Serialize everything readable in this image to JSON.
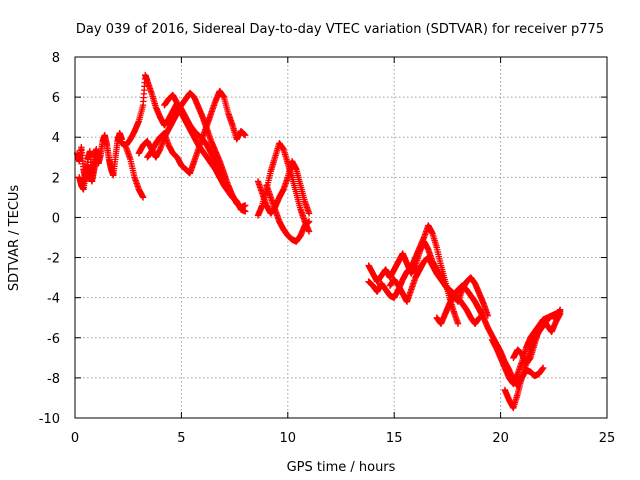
{
  "chart_data": {
    "type": "scatter",
    "title": "Day 039 of 2016, Sidereal Day-to-day VTEC variation (SDTVAR) for receiver p775",
    "xlabel": "GPS time / hours",
    "ylabel": "SDTVAR / TECUs",
    "xlim": [
      0,
      25
    ],
    "ylim": [
      -10,
      8
    ],
    "x_ticks": [
      "0",
      "5",
      "10",
      "15",
      "20",
      "25"
    ],
    "y_ticks": [
      "-10",
      "-8",
      "-6",
      "-4",
      "-2",
      "0",
      "2",
      "4",
      "6",
      "8"
    ],
    "grid": true,
    "marker": "+",
    "color": "#ff0000",
    "series": [
      {
        "name": "trace-1",
        "x": [
          0.1,
          0.2,
          0.3,
          0.4,
          0.5,
          0.6,
          0.7,
          0.8,
          0.9,
          1.0,
          1.1,
          1.2,
          1.3,
          1.4,
          1.5,
          1.6,
          1.7,
          1.8,
          1.9,
          2.0,
          2.1,
          2.2
        ],
        "y": [
          3.2,
          2.8,
          3.5,
          2.4,
          1.8,
          2.9,
          3.3,
          2.2,
          3.0,
          3.4,
          2.7,
          3.1,
          3.8,
          4.1,
          3.6,
          2.9,
          2.4,
          2.1,
          3.0,
          3.8,
          4.2,
          3.9
        ]
      },
      {
        "name": "trace-2",
        "x": [
          0.2,
          0.3,
          0.4,
          0.5,
          0.6,
          0.7,
          0.8,
          0.9,
          1.0
        ],
        "y": [
          2.0,
          1.6,
          1.4,
          2.2,
          2.6,
          2.1,
          1.8,
          2.4,
          3.0
        ]
      },
      {
        "name": "trace-3",
        "x": [
          2.0,
          2.2,
          2.4,
          2.6,
          2.8,
          3.0,
          3.2,
          3.3,
          3.4,
          3.6,
          3.8,
          4.0,
          4.2,
          4.4,
          4.6,
          4.8,
          5.0,
          5.2,
          5.4,
          5.6,
          5.8,
          6.0,
          6.2,
          6.4,
          6.6,
          6.8,
          7.0
        ],
        "y": [
          4.0,
          3.7,
          3.6,
          3.9,
          4.3,
          4.8,
          5.6,
          7.1,
          6.8,
          6.2,
          5.5,
          5.0,
          4.6,
          4.9,
          5.3,
          5.7,
          5.4,
          5.0,
          4.6,
          4.3,
          4.1,
          3.9,
          3.6,
          3.2,
          2.8,
          2.4,
          2.0
        ]
      },
      {
        "name": "trace-4",
        "x": [
          2.4,
          2.6,
          2.8,
          3.0,
          3.2
        ],
        "y": [
          3.5,
          2.9,
          2.0,
          1.4,
          1.0
        ]
      },
      {
        "name": "trace-5",
        "x": [
          3.0,
          3.2,
          3.4,
          3.6,
          3.8,
          4.0,
          4.2,
          4.4,
          4.6,
          4.8,
          5.0,
          5.2,
          5.4,
          5.6,
          5.8,
          6.0,
          6.2,
          6.4,
          6.6,
          6.8,
          7.0,
          7.2,
          7.4,
          7.6,
          7.8,
          8.0
        ],
        "y": [
          3.2,
          3.6,
          3.8,
          3.4,
          3.0,
          3.4,
          4.0,
          4.4,
          4.8,
          5.2,
          5.6,
          5.9,
          6.2,
          6.0,
          5.5,
          5.0,
          4.4,
          3.8,
          3.3,
          2.8,
          2.2,
          1.6,
          1.1,
          0.7,
          0.5,
          0.6
        ]
      },
      {
        "name": "trace-6",
        "x": [
          3.4,
          3.6,
          3.8,
          4.0,
          4.2,
          4.4,
          4.6,
          4.8,
          5.0,
          5.2,
          5.4,
          5.6,
          5.8,
          6.0,
          6.2,
          6.4,
          6.6,
          6.8,
          7.0,
          7.2,
          7.4,
          7.6,
          7.8,
          8.0
        ],
        "y": [
          3.0,
          3.3,
          3.7,
          4.0,
          4.2,
          3.6,
          3.2,
          3.0,
          2.6,
          2.4,
          2.2,
          2.8,
          3.4,
          4.0,
          4.6,
          5.2,
          5.8,
          6.3,
          6.0,
          5.2,
          4.6,
          3.9,
          4.3,
          4.1
        ]
      },
      {
        "name": "trace-7",
        "x": [
          4.2,
          4.4,
          4.6,
          4.8,
          5.0,
          5.2,
          5.4,
          5.6,
          5.8,
          6.0,
          6.2,
          6.4,
          6.6,
          6.8,
          7.0,
          7.2,
          7.4,
          7.6,
          7.8,
          8.0
        ],
        "y": [
          5.6,
          5.9,
          6.1,
          5.7,
          5.2,
          4.8,
          4.4,
          4.0,
          3.6,
          3.3,
          3.0,
          2.7,
          2.4,
          2.0,
          1.6,
          1.3,
          1.0,
          0.8,
          0.4,
          0.3
        ]
      },
      {
        "name": "trace-8",
        "x": [
          8.6,
          8.8,
          9.0,
          9.2,
          9.4,
          9.6,
          9.8,
          10.0,
          10.2,
          10.4,
          10.6,
          10.8,
          11.0
        ],
        "y": [
          0.1,
          0.6,
          1.4,
          2.3,
          3.0,
          3.7,
          3.4,
          2.7,
          2.0,
          1.2,
          0.4,
          -0.2,
          -0.7
        ]
      },
      {
        "name": "trace-9",
        "x": [
          8.6,
          8.8,
          9.0,
          9.2,
          9.4,
          9.6,
          9.8,
          10.0,
          10.2,
          10.4,
          10.6,
          10.8,
          11.0
        ],
        "y": [
          1.8,
          1.2,
          0.6,
          0.2,
          0.5,
          1.0,
          1.4,
          2.0,
          2.8,
          2.4,
          1.6,
          0.8,
          0.2
        ]
      },
      {
        "name": "trace-10",
        "x": [
          9.0,
          9.2,
          9.4,
          9.6,
          9.8,
          10.0,
          10.2,
          10.4,
          10.6,
          10.8,
          11.0
        ],
        "y": [
          1.6,
          1.0,
          0.4,
          -0.2,
          -0.6,
          -0.9,
          -1.1,
          -1.2,
          -0.9,
          -0.4,
          -0.2
        ]
      },
      {
        "name": "trace-11",
        "x": [
          13.8,
          14.0,
          14.2,
          14.4,
          14.6,
          14.8,
          15.0,
          15.2,
          15.4,
          15.6,
          15.8,
          16.0,
          16.2,
          16.4,
          16.6,
          16.8,
          17.0,
          17.2,
          17.4,
          17.6,
          17.8,
          18.0,
          18.2,
          18.4,
          18.6,
          18.8,
          19.0,
          19.2,
          19.4
        ],
        "y": [
          -2.4,
          -2.8,
          -3.2,
          -2.9,
          -2.6,
          -3.0,
          -2.6,
          -2.2,
          -1.8,
          -2.3,
          -2.8,
          -2.4,
          -1.7,
          -1.2,
          -1.6,
          -2.2,
          -2.6,
          -3.0,
          -3.4,
          -3.7,
          -3.9,
          -4.2,
          -3.6,
          -3.2,
          -3.0,
          -3.3,
          -3.8,
          -4.3,
          -4.9
        ]
      },
      {
        "name": "trace-12",
        "x": [
          13.8,
          14.0,
          14.2,
          14.4,
          14.6,
          14.8,
          15.0,
          15.2,
          15.4,
          15.6,
          15.8,
          16.0,
          16.2,
          16.4,
          16.6,
          16.8,
          17.0,
          17.2,
          17.4,
          17.6,
          17.8,
          18.0
        ],
        "y": [
          -3.2,
          -3.4,
          -3.7,
          -3.3,
          -3.6,
          -3.9,
          -4.0,
          -3.6,
          -3.1,
          -2.7,
          -2.5,
          -2.0,
          -1.5,
          -1.0,
          -0.4,
          -0.8,
          -1.5,
          -2.4,
          -3.2,
          -4.0,
          -4.7,
          -5.3
        ]
      },
      {
        "name": "trace-13",
        "x": [
          14.8,
          15.0,
          15.2,
          15.4,
          15.6,
          15.8,
          16.0,
          16.2,
          16.4,
          16.6,
          16.8,
          17.0,
          17.2,
          17.4,
          17.6,
          17.8,
          18.0,
          18.2,
          18.4,
          18.6,
          18.8,
          19.0
        ],
        "y": [
          -3.4,
          -3.1,
          -3.4,
          -3.8,
          -4.2,
          -3.6,
          -3.0,
          -2.6,
          -2.2,
          -2.0,
          -2.4,
          -2.8,
          -3.1,
          -3.4,
          -3.6,
          -3.8,
          -4.0,
          -4.3,
          -4.6,
          -5.0,
          -5.3,
          -5.0
        ]
      },
      {
        "name": "trace-14",
        "x": [
          17.0,
          17.2,
          17.4,
          17.6,
          17.8,
          18.0,
          18.2,
          18.4,
          18.6,
          18.8,
          19.0,
          19.2,
          19.4,
          19.6,
          19.8,
          20.0,
          20.2,
          20.4,
          20.6,
          20.8,
          21.0,
          21.2,
          21.4,
          21.6,
          21.8,
          22.0
        ],
        "y": [
          -5.0,
          -5.3,
          -4.8,
          -4.3,
          -3.9,
          -3.6,
          -3.4,
          -3.6,
          -3.9,
          -4.2,
          -4.6,
          -5.0,
          -5.5,
          -5.9,
          -6.3,
          -6.7,
          -7.2,
          -7.6,
          -8.1,
          -8.4,
          -8.0,
          -7.6,
          -7.7,
          -7.9,
          -7.8,
          -7.5
        ]
      },
      {
        "name": "trace-15",
        "x": [
          19.6,
          19.8,
          20.0,
          20.2,
          20.4,
          20.6,
          20.8,
          21.0,
          21.2,
          21.4,
          21.6,
          21.8,
          22.0,
          22.2,
          22.4,
          22.6,
          22.8
        ],
        "y": [
          -6.1,
          -6.5,
          -7.0,
          -7.5,
          -8.0,
          -8.3,
          -7.8,
          -7.2,
          -6.5,
          -6.0,
          -5.7,
          -5.4,
          -5.1,
          -5.0,
          -4.9,
          -4.8,
          -4.7
        ]
      },
      {
        "name": "trace-16",
        "x": [
          20.2,
          20.4,
          20.6,
          20.8,
          21.0,
          21.2,
          21.4,
          21.6,
          21.8,
          22.0,
          22.2,
          22.4,
          22.6,
          22.8
        ],
        "y": [
          -8.6,
          -9.1,
          -9.5,
          -8.8,
          -8.0,
          -7.3,
          -6.6,
          -6.1,
          -5.7,
          -5.4,
          -5.1,
          -4.9,
          -5.0,
          -4.6
        ]
      },
      {
        "name": "trace-17",
        "x": [
          20.6,
          20.8,
          21.0,
          21.2,
          21.4,
          21.6,
          21.8,
          22.0,
          22.2,
          22.4,
          22.6,
          22.8
        ],
        "y": [
          -7.0,
          -6.6,
          -6.8,
          -7.3,
          -7.0,
          -6.3,
          -5.6,
          -5.1,
          -5.4,
          -5.7,
          -5.2,
          -4.8
        ]
      }
    ]
  }
}
